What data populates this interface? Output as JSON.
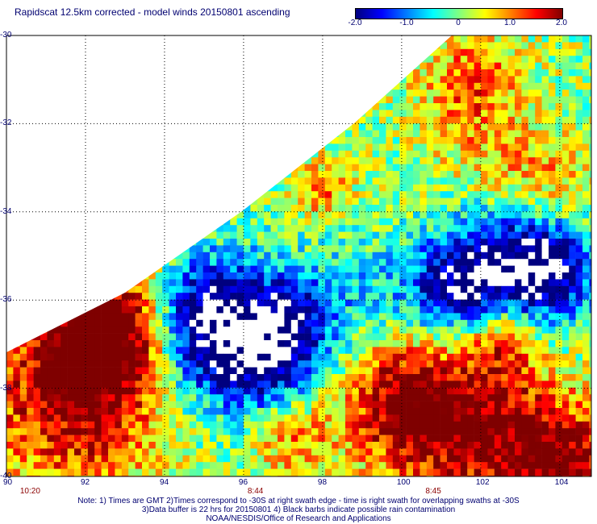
{
  "title": "Rapidscat 12.5km corrected - model winds 20150801 ascending",
  "colorbar": {
    "ticks": [
      "-2.0",
      "-1.0",
      "0",
      "1.0",
      "2.0"
    ],
    "tick_values": [
      -2.0,
      -1.0,
      0,
      1.0,
      2.0
    ],
    "colors": [
      "#00007f",
      "#0000ff",
      "#0080ff",
      "#00ffff",
      "#80ff80",
      "#ffff00",
      "#ff8000",
      "#ff0000",
      "#7f0000"
    ]
  },
  "map": {
    "lon_range": [
      90,
      104.8
    ],
    "lat_range": [
      -30,
      -40
    ],
    "lat_labels": [
      "-30",
      "-32",
      "-34",
      "-36",
      "-38",
      "-40"
    ],
    "lat_values": [
      -30,
      -32,
      -34,
      -36,
      -38,
      -40
    ],
    "lon_labels": [
      "90",
      "92",
      "94",
      "96",
      "98",
      "100",
      "102",
      "104"
    ],
    "lon_values": [
      90,
      92,
      94,
      96,
      98,
      100,
      102,
      104
    ],
    "grid_lines": "dotted",
    "land_mask": "none"
  },
  "time_labels": [
    {
      "text": "10:20",
      "lon": 90.6
    },
    {
      "text": "8:44",
      "lon": 96.3
    },
    {
      "text": "8:45",
      "lon": 100.8
    }
  ],
  "notes": [
    "Note: 1) Times are GMT 2)Times correspond to -30S at right swath edge - time is right swath for overlapping swaths at -30S",
    "3)Data buffer is 22 hrs for 20150801 4) Black barbs indicate possible rain contamination",
    "NOAA/NESDIS/Office of Research and Applications"
  ]
}
